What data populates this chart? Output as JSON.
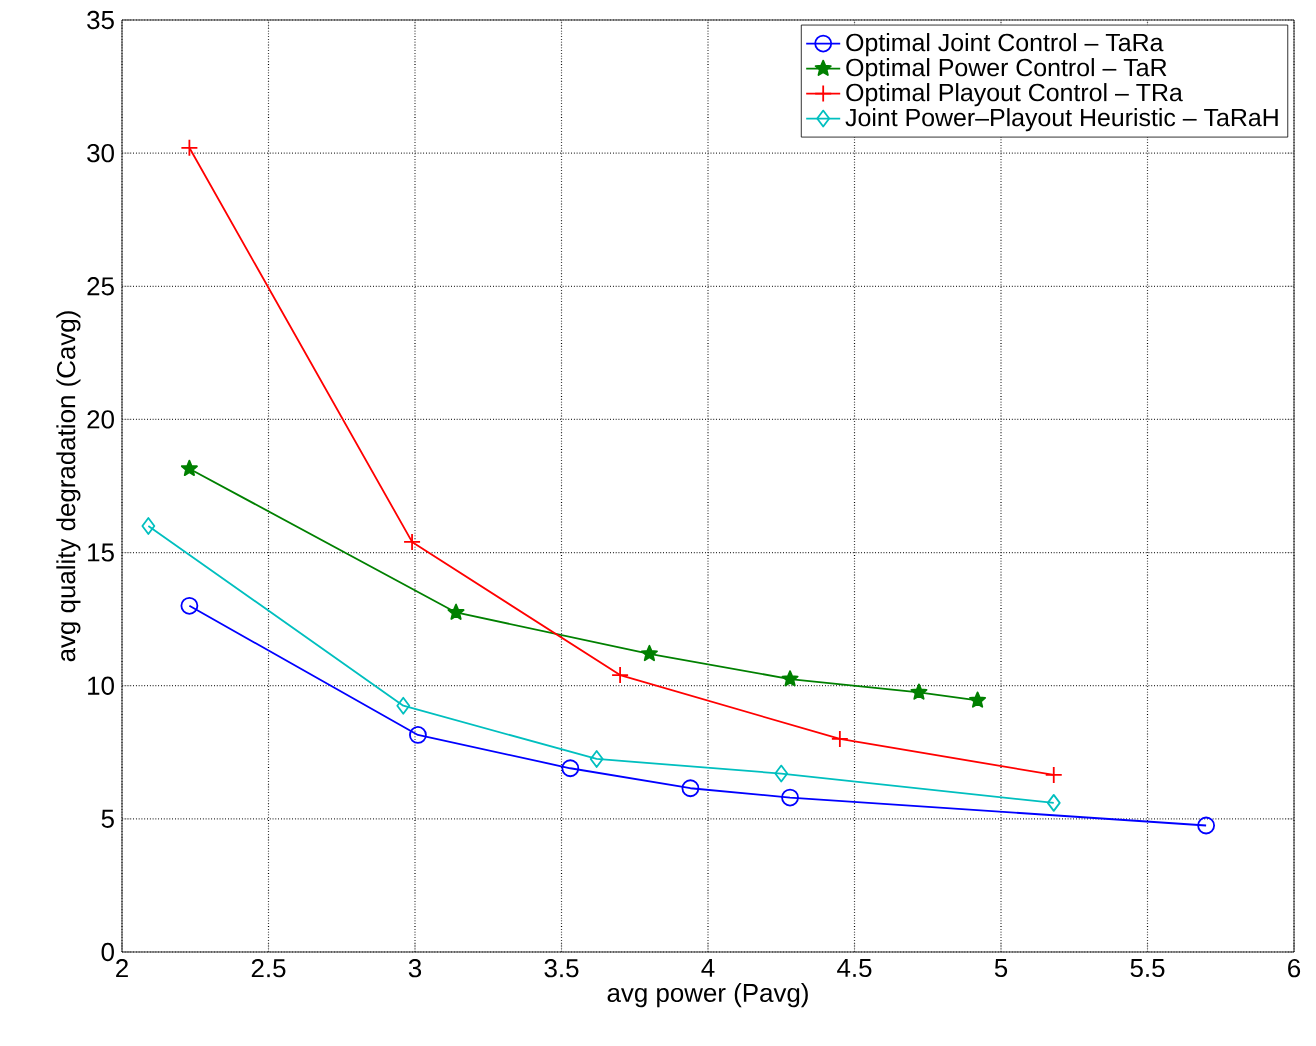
{
  "chart_data": {
    "type": "line",
    "xlabel": "avg power (Pavg)",
    "ylabel": "avg quality degradation (Cavg)",
    "xlim": [
      2,
      6
    ],
    "xticks": [
      2,
      2.5,
      3,
      3.5,
      4,
      4.5,
      5,
      5.5,
      6
    ],
    "ylim": [
      0,
      35
    ],
    "yticks": [
      0,
      5,
      10,
      15,
      20,
      25,
      30,
      35
    ],
    "grid": true,
    "legend": "top right",
    "line_style": "solid",
    "series": [
      {
        "name": "Optimal Joint Control  – TaRa",
        "color": "#0000ff",
        "marker": "circle",
        "x": [
          2.23,
          3.01,
          3.53,
          3.94,
          4.28,
          5.7
        ],
        "values": [
          13.0,
          8.15,
          6.9,
          6.15,
          5.8,
          4.75
        ]
      },
      {
        "name": "Optimal Power Control – TaR",
        "color": "#008000",
        "marker": "star",
        "x": [
          2.23,
          3.14,
          3.8,
          4.28,
          4.72,
          4.92
        ],
        "values": [
          18.15,
          12.75,
          11.2,
          10.25,
          9.75,
          9.45
        ]
      },
      {
        "name": "Optimal Playout Control – TRa",
        "color": "#ff0000",
        "marker": "cross",
        "x": [
          2.23,
          2.99,
          3.7,
          4.45,
          5.18
        ],
        "values": [
          30.2,
          15.4,
          10.4,
          8.0,
          6.65
        ]
      },
      {
        "name": "Joint Power–Playout Heuristic – TaRaH",
        "color": "#00bfbf",
        "marker": "diamond",
        "x": [
          2.09,
          2.96,
          3.62,
          4.25,
          5.18
        ],
        "values": [
          16.0,
          9.25,
          7.25,
          6.7,
          5.6
        ]
      }
    ]
  }
}
